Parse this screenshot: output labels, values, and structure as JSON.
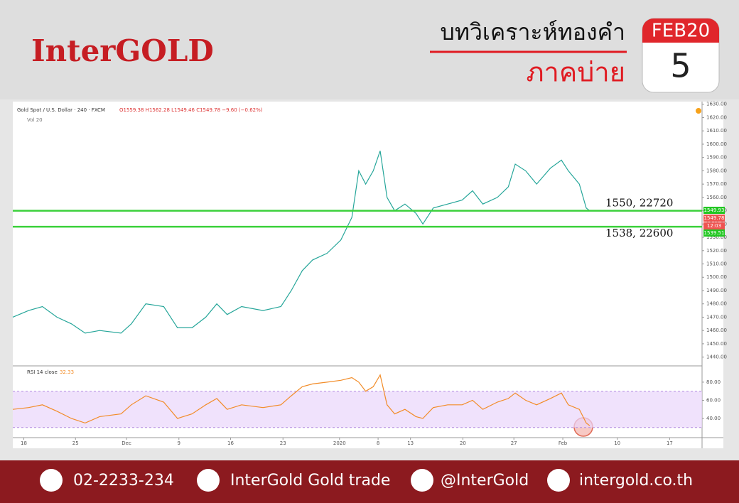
{
  "header": {
    "logo": "InterGOLD",
    "title": "บทวิเคราะห์ทองคำ",
    "subtitle": "ภาคบ่าย",
    "month": "FEB20",
    "day": "5"
  },
  "chart_data": [
    {
      "type": "line",
      "title": "Gold Spot / U.S. Dollar · 240 · FXCM",
      "ohlc": "O1559.38 H1562.28 L1549.46 C1549.78 −9.60 (−0.62%)",
      "indicator": "Vol 20",
      "color": "#26a69a",
      "x": [
        0,
        2.3,
        4.3,
        6.4,
        8.5,
        10.5,
        12.6,
        15.7,
        17.2,
        19.3,
        21.9,
        23.9,
        26,
        28,
        29.6,
        31.1,
        33.2,
        36.3,
        38.9,
        40.4,
        42,
        43.5,
        45.6,
        47.6,
        49.2,
        50.2,
        51.2,
        52.3,
        53.3,
        54.3,
        55.4,
        56.9,
        58.5,
        59.5,
        61,
        63.1,
        65.2,
        66.7,
        68.2,
        70.3,
        71.9,
        72.9,
        74.4,
        76,
        78,
        79.6,
        80.6,
        82.2,
        83.2,
        83.7
      ],
      "values": [
        1470,
        1475,
        1478,
        1470,
        1465,
        1458,
        1460,
        1458,
        1465,
        1480,
        1478,
        1462,
        1462,
        1470,
        1480,
        1472,
        1478,
        1475,
        1478,
        1490,
        1505,
        1513,
        1518,
        1528,
        1545,
        1580,
        1570,
        1580,
        1595,
        1560,
        1550,
        1555,
        1548,
        1540,
        1552,
        1555,
        1558,
        1565,
        1555,
        1560,
        1568,
        1585,
        1580,
        1570,
        1582,
        1588,
        1580,
        1570,
        1552,
        1550
      ],
      "xlim": [
        0,
        100
      ],
      "xticks": [
        {
          "value": 1.6,
          "label": "18"
        },
        {
          "value": 9.1,
          "label": "25"
        },
        {
          "value": 16.5,
          "label": "Dec"
        },
        {
          "value": 24.1,
          "label": "9"
        },
        {
          "value": 31.6,
          "label": "16"
        },
        {
          "value": 39.2,
          "label": "23"
        },
        {
          "value": 47.4,
          "label": "2020"
        },
        {
          "value": 53,
          "label": "8"
        },
        {
          "value": 57.7,
          "label": "13"
        },
        {
          "value": 65.3,
          "label": "20"
        },
        {
          "value": 72.7,
          "label": "27"
        },
        {
          "value": 79.8,
          "label": "Feb"
        },
        {
          "value": 87.7,
          "label": "10"
        },
        {
          "value": 95.3,
          "label": "17"
        }
      ],
      "ylim": [
        1435,
        1632
      ],
      "yticks": [
        {
          "value": 1440,
          "label": "1440.00"
        },
        {
          "value": 1450,
          "label": "1450.00"
        },
        {
          "value": 1460,
          "label": "1460.00"
        },
        {
          "value": 1470,
          "label": "1470.00"
        },
        {
          "value": 1480,
          "label": "1480.00"
        },
        {
          "value": 1490,
          "label": "1490.00"
        },
        {
          "value": 1500,
          "label": "1500.00"
        },
        {
          "value": 1510,
          "label": "1510.00"
        },
        {
          "value": 1520,
          "label": "1520.00"
        },
        {
          "value": 1530,
          "label": "1530.00"
        },
        {
          "value": 1540,
          "label": "1540.00"
        },
        {
          "value": 1550,
          "label": "1550.00"
        },
        {
          "value": 1560,
          "label": "1560.00"
        },
        {
          "value": 1570,
          "label": "1570.00"
        },
        {
          "value": 1580,
          "label": "1580.00"
        },
        {
          "value": 1590,
          "label": "1590.00"
        },
        {
          "value": 1600,
          "label": "1600.00"
        },
        {
          "value": 1610,
          "label": "1610.00"
        },
        {
          "value": 1620,
          "label": "1620.00"
        },
        {
          "value": 1630,
          "label": "1630.00"
        }
      ],
      "hlines": [
        {
          "value": 1550,
          "label": "1550, 22720"
        },
        {
          "value": 1538,
          "label": "1538, 22600"
        }
      ],
      "hline_color": "#3bd13b",
      "price_labels": [
        {
          "value": 1549.93,
          "color": "#22c722"
        },
        {
          "value": 1549.78,
          "color": "#ef5350"
        },
        {
          "value": 1539.51,
          "color": "#22c722"
        }
      ],
      "countdown": "12:03"
    },
    {
      "type": "line",
      "title": "RSI 14 close",
      "last": "32.33",
      "color": "#f28c28",
      "x": [
        0,
        2.3,
        4.3,
        6.4,
        8.5,
        10.5,
        12.6,
        15.7,
        17.2,
        19.3,
        21.9,
        23.9,
        26,
        28,
        29.6,
        31.1,
        33.2,
        36.3,
        38.9,
        40.4,
        42,
        43.5,
        45.6,
        47.6,
        49.2,
        50.2,
        51.2,
        52.3,
        53.3,
        54.3,
        55.4,
        56.9,
        58.5,
        59.5,
        61,
        63.1,
        65.2,
        66.7,
        68.2,
        70.3,
        71.9,
        72.9,
        74.4,
        76,
        78,
        79.6,
        80.6,
        82.2,
        83.2,
        83.7
      ],
      "values": [
        50,
        52,
        55,
        48,
        40,
        35,
        42,
        45,
        55,
        65,
        58,
        40,
        45,
        55,
        62,
        50,
        55,
        52,
        55,
        65,
        75,
        78,
        80,
        82,
        85,
        80,
        70,
        75,
        88,
        55,
        45,
        50,
        42,
        40,
        52,
        55,
        55,
        60,
        50,
        58,
        62,
        68,
        60,
        55,
        62,
        68,
        55,
        50,
        35,
        32
      ],
      "xlim": [
        0,
        100
      ],
      "ylim": [
        22,
        94
      ],
      "yticks": [
        {
          "value": 40,
          "label": "40.00"
        },
        {
          "value": 60,
          "label": "60.00"
        },
        {
          "value": 80,
          "label": "80.00"
        }
      ],
      "band": [
        30,
        70
      ],
      "band_color": "#e9d5fb"
    }
  ],
  "footer": {
    "phone": "02-2233-234",
    "facebook": "InterGold Gold trade",
    "line": "@InterGold",
    "web": "intergold.co.th"
  }
}
